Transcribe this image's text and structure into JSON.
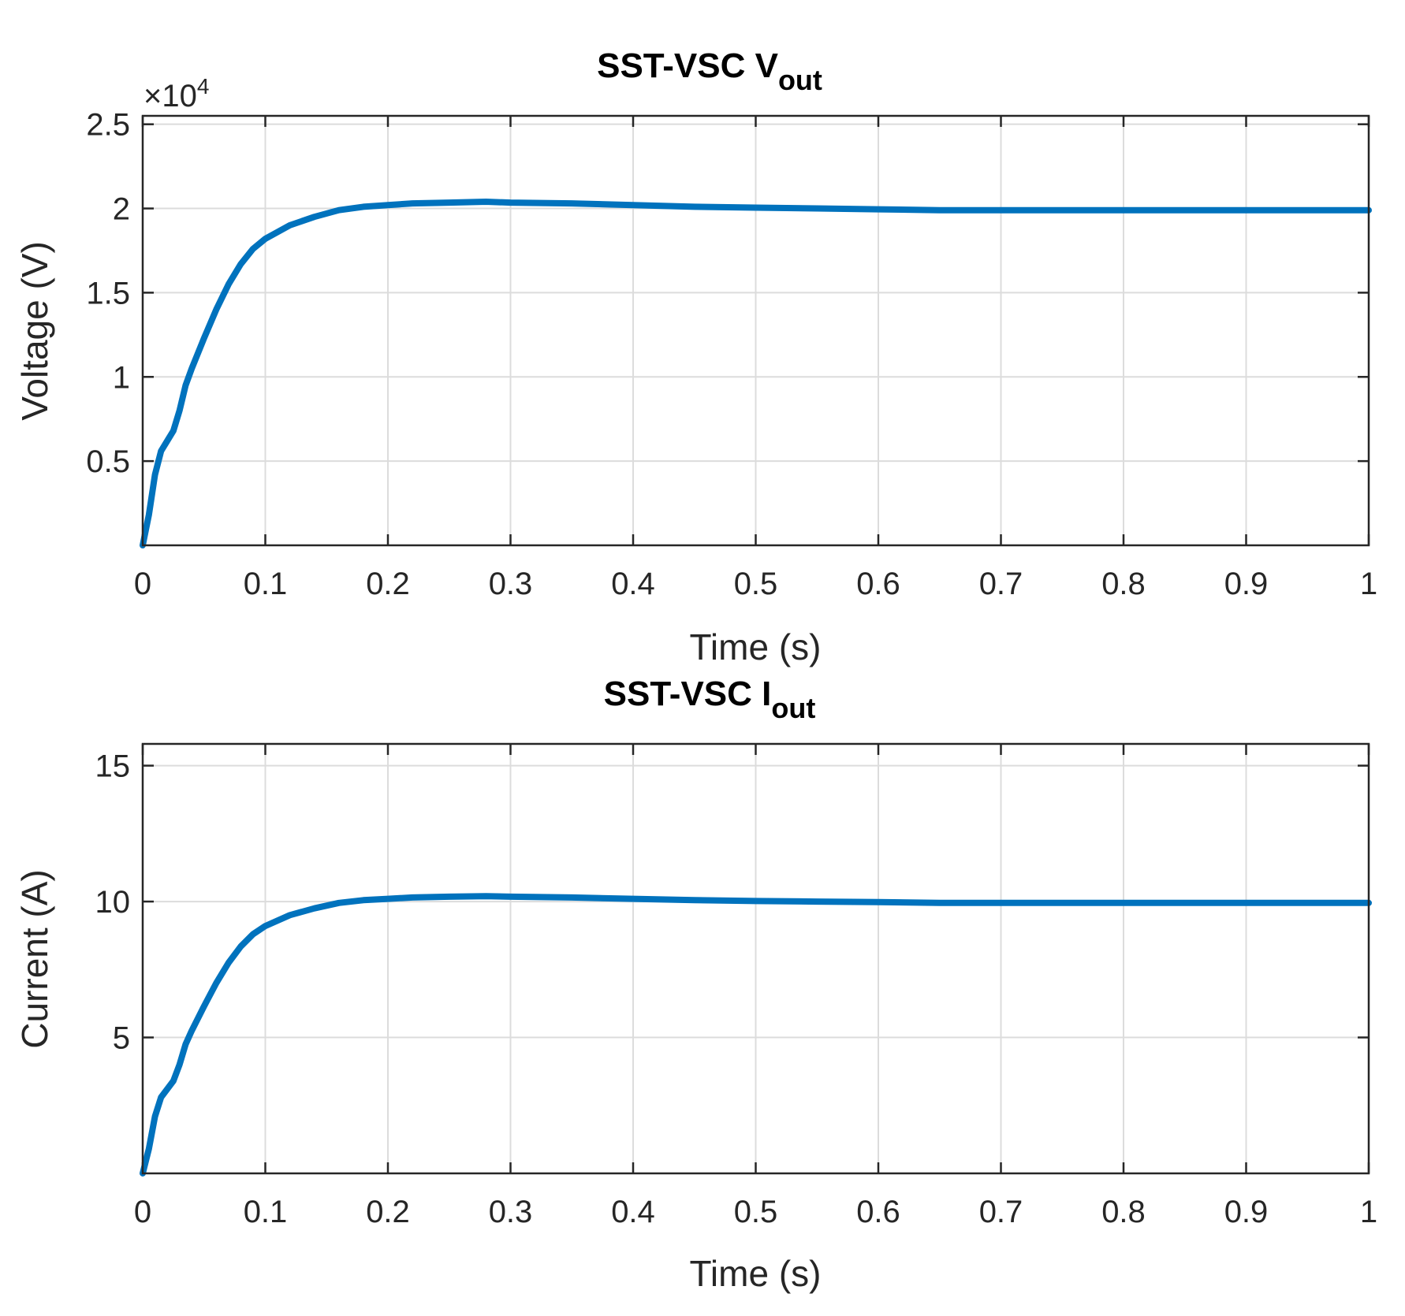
{
  "chart_data": [
    {
      "type": "line",
      "title": {
        "main": "SST-VSC V",
        "sub": "out"
      },
      "xlabel": "Time (s)",
      "ylabel": "Voltage (V)",
      "exponent": {
        "prefix": "×10",
        "power": "4"
      },
      "xlim": [
        0,
        1
      ],
      "ylim": [
        0,
        2.55
      ],
      "xticks": [
        0,
        0.1,
        0.2,
        0.3,
        0.4,
        0.5,
        0.6,
        0.7,
        0.8,
        0.9,
        1
      ],
      "xticklabels": [
        "0",
        "0.1",
        "0.2",
        "0.3",
        "0.4",
        "0.5",
        "0.6",
        "0.7",
        "0.8",
        "0.9",
        "1"
      ],
      "yticks": [
        0.5,
        1,
        1.5,
        2,
        2.5
      ],
      "yticklabels": [
        "0.5",
        "1",
        "1.5",
        "2",
        "2.5"
      ],
      "grid": true,
      "color": "#0072BD",
      "series": [
        {
          "x": [
            0,
            0.005,
            0.01,
            0.015,
            0.02,
            0.025,
            0.03,
            0.035,
            0.04,
            0.05,
            0.06,
            0.07,
            0.08,
            0.09,
            0.1,
            0.12,
            0.14,
            0.16,
            0.18,
            0.2,
            0.22,
            0.25,
            0.28,
            0.3,
            0.35,
            0.4,
            0.45,
            0.5,
            0.55,
            0.6,
            0.65,
            0.7,
            0.8,
            0.9,
            1.0
          ],
          "y": [
            0.0,
            0.18,
            0.42,
            0.56,
            0.62,
            0.68,
            0.8,
            0.95,
            1.05,
            1.23,
            1.4,
            1.55,
            1.67,
            1.76,
            1.82,
            1.9,
            1.95,
            1.99,
            2.01,
            2.02,
            2.03,
            2.035,
            2.04,
            2.035,
            2.03,
            2.02,
            2.01,
            2.005,
            2.0,
            1.995,
            1.99,
            1.99,
            1.99,
            1.99,
            1.99
          ]
        }
      ]
    },
    {
      "type": "line",
      "title": {
        "main": "SST-VSC I",
        "sub": "out"
      },
      "xlabel": "Time (s)",
      "ylabel": "Current (A)",
      "xlim": [
        0,
        1
      ],
      "ylim": [
        0,
        15.8
      ],
      "xticks": [
        0,
        0.1,
        0.2,
        0.3,
        0.4,
        0.5,
        0.6,
        0.7,
        0.8,
        0.9,
        1
      ],
      "xticklabels": [
        "0",
        "0.1",
        "0.2",
        "0.3",
        "0.4",
        "0.5",
        "0.6",
        "0.7",
        "0.8",
        "0.9",
        "1"
      ],
      "yticks": [
        5,
        10,
        15
      ],
      "yticklabels": [
        "5",
        "10",
        "15"
      ],
      "grid": true,
      "color": "#0072BD",
      "series": [
        {
          "x": [
            0,
            0.005,
            0.01,
            0.015,
            0.02,
            0.025,
            0.03,
            0.035,
            0.04,
            0.05,
            0.06,
            0.07,
            0.08,
            0.09,
            0.1,
            0.12,
            0.14,
            0.16,
            0.18,
            0.2,
            0.22,
            0.25,
            0.28,
            0.3,
            0.35,
            0.4,
            0.45,
            0.5,
            0.55,
            0.6,
            0.65,
            0.7,
            0.8,
            0.9,
            1.0
          ],
          "y": [
            0.0,
            0.9,
            2.1,
            2.8,
            3.1,
            3.4,
            4.0,
            4.75,
            5.25,
            6.15,
            7.0,
            7.75,
            8.35,
            8.8,
            9.1,
            9.5,
            9.75,
            9.95,
            10.05,
            10.1,
            10.15,
            10.18,
            10.2,
            10.18,
            10.15,
            10.1,
            10.05,
            10.02,
            10.0,
            9.98,
            9.95,
            9.95,
            9.95,
            9.95,
            9.95
          ]
        }
      ]
    }
  ]
}
